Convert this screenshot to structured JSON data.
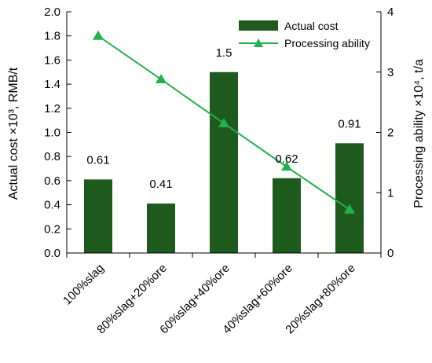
{
  "chart_data": {
    "type": "bar",
    "categories": [
      "100%slag",
      "80%slag+20%ore",
      "60%slag+40%ore",
      "40%slag+60%ore",
      "20%slag+80%ore"
    ],
    "series": [
      {
        "name": "Actual cost",
        "type": "bar",
        "axis": "left",
        "values": [
          0.61,
          0.41,
          1.5,
          0.62,
          0.91
        ],
        "data_labels": [
          "0.61",
          "0.41",
          "1.5",
          "0.62",
          "0.91"
        ],
        "color": "#1e5a1e"
      },
      {
        "name": "Processing ability",
        "type": "line",
        "axis": "right",
        "marker": "triangle",
        "values": [
          3.6,
          2.88,
          2.15,
          1.43,
          0.72
        ],
        "color": "#22b14c"
      }
    ],
    "ylabel": "Actual cost ×10³,  RMB/t",
    "y2label": "Processing ability ×10⁴, t/a",
    "ylim": [
      0,
      2.0
    ],
    "y2lim": [
      0,
      4
    ],
    "yticks": [
      "0.0",
      "0.2",
      "0.4",
      "0.6",
      "0.8",
      "1.0",
      "1.2",
      "1.4",
      "1.6",
      "1.8",
      "2.0"
    ],
    "y2ticks": [
      "0",
      "1",
      "2",
      "3",
      "4"
    ],
    "legend": "top-right",
    "grid": false
  }
}
